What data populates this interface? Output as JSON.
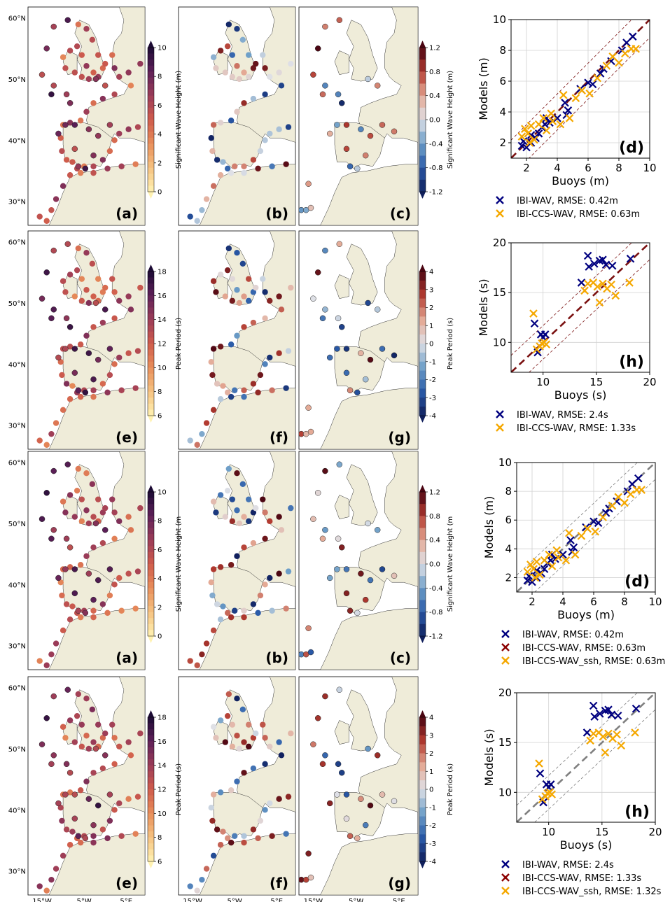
{
  "rows": [
    {
      "maps": {
        "panels": [
          "(a)",
          "(b)",
          "(c)"
        ],
        "lat_labels": [
          "60°N",
          "50°N",
          "40°N",
          "30°N"
        ],
        "lon_labels": [],
        "cb1": {
          "label": "Significant Wave Height (m)",
          "ticks": [
            "0",
            "2",
            "4",
            "6",
            "8",
            "10"
          ]
        },
        "cb2": {
          "label": "Significant Wave Height (m)",
          "ticks": [
            "-1.2",
            "-0.8",
            "-0.4",
            "0.0",
            "0.4",
            "0.8",
            "1.2"
          ]
        }
      }
    },
    {
      "maps": {
        "panels": [
          "(e)",
          "(f)",
          "(g)"
        ],
        "lat_labels": [
          "60°N",
          "50°N",
          "40°N",
          "30°N"
        ],
        "lon_labels": [],
        "cb1": {
          "label": "Peak Period (s)",
          "ticks": [
            "6",
            "8",
            "10",
            "12",
            "14",
            "16",
            "18"
          ]
        },
        "cb2": {
          "label": "Peak Period (s)",
          "ticks": [
            "-4",
            "-3",
            "-2",
            "-1",
            "0",
            "1",
            "2",
            "3",
            "4"
          ]
        }
      }
    },
    {
      "maps": {
        "panels": [
          "(a)",
          "(b)",
          "(c)"
        ],
        "lat_labels": [
          "60°N",
          "50°N",
          "40°N",
          "30°N"
        ],
        "lon_labels": [],
        "cb1": {
          "label": "Significant Wave Height (m",
          "ticks": [
            "0",
            "2",
            "4",
            "6",
            "8",
            "10"
          ]
        },
        "cb2": {
          "label": "Significant Wave Height (m",
          "ticks": [
            "-1.2",
            "-0.8",
            "-0.4",
            "0.0",
            "0.4",
            "0.8",
            "1.2"
          ]
        }
      }
    },
    {
      "maps": {
        "panels": [
          "(e)",
          "(f)",
          "(g)"
        ],
        "lat_labels": [
          "60°N",
          "50°N",
          "40°N",
          "30°N"
        ],
        "lon_labels": [
          "15°W",
          "5°W",
          "5°E"
        ],
        "cb1": {
          "label": "Peak Period (s)",
          "ticks": [
            "6",
            "8",
            "10",
            "12",
            "14",
            "16",
            "18"
          ]
        },
        "cb2": {
          "label": "Peak Period (s)",
          "ticks": [
            "-4",
            "-3",
            "-2",
            "-1",
            "0",
            "1",
            "2",
            "3",
            "4"
          ]
        }
      }
    }
  ],
  "chart_data": [
    {
      "type": "scatter",
      "panel": "(d)",
      "xlabel": "Buoys (m)",
      "ylabel": "Models (m)",
      "xlim": [
        1,
        10
      ],
      "ylim": [
        1,
        10
      ],
      "xticks": [
        "2",
        "4",
        "6",
        "8",
        "10"
      ],
      "yticks": [
        "2",
        "4",
        "6",
        "8",
        "10"
      ],
      "guide_color": "#7a1010",
      "guide_dash": "10,6",
      "series": [
        {
          "name": "IBI-WAV, RMSE: 0.42m",
          "color": "#00007f",
          "points": [
            [
              1.7,
              1.8
            ],
            [
              1.8,
              2.1
            ],
            [
              2.0,
              1.7
            ],
            [
              2.3,
              2.0
            ],
            [
              2.6,
              2.3
            ],
            [
              2.8,
              2.6
            ],
            [
              3.0,
              3.0
            ],
            [
              3.2,
              3.2
            ],
            [
              3.5,
              3.3
            ],
            [
              4.0,
              3.6
            ],
            [
              4.5,
              4.6
            ],
            [
              4.7,
              4.1
            ],
            [
              4.6,
              3.8
            ],
            [
              5.5,
              5.5
            ],
            [
              6.0,
              5.9
            ],
            [
              6.3,
              5.8
            ],
            [
              7.0,
              6.8
            ],
            [
              7.5,
              7.3
            ],
            [
              8.2,
              8.0
            ],
            [
              8.5,
              8.5
            ],
            [
              8.9,
              8.9
            ],
            [
              6.8,
              6.5
            ],
            [
              2.3,
              2.5
            ],
            [
              3.3,
              3.6
            ]
          ]
        },
        {
          "name": "IBI-CCS-WAV, RMSE: 0.63m",
          "color": "#f5a800",
          "points": [
            [
              1.7,
              2.4
            ],
            [
              1.9,
              2.9
            ],
            [
              2.1,
              2.6
            ],
            [
              2.3,
              3.1
            ],
            [
              2.5,
              2.2
            ],
            [
              2.8,
              3.2
            ],
            [
              3.1,
              3.6
            ],
            [
              3.3,
              2.8
            ],
            [
              3.7,
              3.4
            ],
            [
              4.2,
              3.2
            ],
            [
              4.4,
              5.1
            ],
            [
              4.8,
              3.6
            ],
            [
              5.2,
              4.9
            ],
            [
              5.6,
              5.4
            ],
            [
              6.1,
              5.2
            ],
            [
              6.6,
              6.2
            ],
            [
              7.2,
              7.0
            ],
            [
              7.6,
              7.6
            ],
            [
              8.0,
              7.2
            ],
            [
              8.4,
              7.8
            ],
            [
              8.8,
              8.1
            ],
            [
              9.1,
              8.1
            ],
            [
              2.2,
              2.0
            ],
            [
              3.6,
              3.9
            ]
          ]
        }
      ]
    },
    {
      "type": "scatter",
      "panel": "(h)",
      "xlabel": "Buoys (s)",
      "ylabel": "Models (s)",
      "xlim": [
        7,
        20
      ],
      "ylim": [
        7,
        20
      ],
      "xticks": [
        "10",
        "15",
        "20"
      ],
      "yticks": [
        "10",
        "15",
        "20"
      ],
      "guide_color": "#7a1010",
      "guide_dash": "10,6",
      "series": [
        {
          "name": "IBI-WAV, RMSE: 2.4s",
          "color": "#00007f",
          "points": [
            [
              9.2,
              11.9
            ],
            [
              9.5,
              9.0
            ],
            [
              9.8,
              10.8
            ],
            [
              10.0,
              10.5
            ],
            [
              10.2,
              10.8
            ],
            [
              13.6,
              16.0
            ],
            [
              14.2,
              18.7
            ],
            [
              14.3,
              17.6
            ],
            [
              14.8,
              17.9
            ],
            [
              15.3,
              18.2
            ],
            [
              15.6,
              18.3
            ],
            [
              15.9,
              17.8
            ],
            [
              16.5,
              17.7
            ],
            [
              18.2,
              18.4
            ]
          ]
        },
        {
          "name": "IBI-CCS-WAV, RMSE: 1.33s",
          "color": "#f5a800",
          "points": [
            [
              9.1,
              12.9
            ],
            [
              9.4,
              9.3
            ],
            [
              9.7,
              9.6
            ],
            [
              9.9,
              9.9
            ],
            [
              10.1,
              10.0
            ],
            [
              10.3,
              9.8
            ],
            [
              13.9,
              15.2
            ],
            [
              14.2,
              15.9
            ],
            [
              14.7,
              16.0
            ],
            [
              15.1,
              15.6
            ],
            [
              15.3,
              14.0
            ],
            [
              15.6,
              15.9
            ],
            [
              16.0,
              15.4
            ],
            [
              16.4,
              15.8
            ],
            [
              16.8,
              14.7
            ],
            [
              18.1,
              16.0
            ]
          ]
        }
      ]
    },
    {
      "type": "scatter",
      "panel": "(d)",
      "xlabel": "Buoys (m)",
      "ylabel": "Models (m)",
      "xlim": [
        1,
        10
      ],
      "ylim": [
        1,
        10
      ],
      "xticks": [
        "2",
        "4",
        "6",
        "8",
        "10"
      ],
      "yticks": [
        "2",
        "4",
        "6",
        "8",
        "10"
      ],
      "guide_color": "#808080",
      "guide_dash": "10,6",
      "series": [
        {
          "name": "IBI-WAV, RMSE: 0.42m",
          "color": "#00007f",
          "points": [
            [
              1.7,
              1.8
            ],
            [
              1.8,
              2.1
            ],
            [
              2.0,
              1.7
            ],
            [
              2.3,
              2.0
            ],
            [
              2.6,
              2.3
            ],
            [
              2.8,
              2.6
            ],
            [
              3.0,
              3.0
            ],
            [
              3.2,
              3.2
            ],
            [
              3.5,
              3.3
            ],
            [
              4.0,
              3.6
            ],
            [
              4.5,
              4.6
            ],
            [
              4.7,
              4.1
            ],
            [
              4.6,
              3.8
            ],
            [
              5.5,
              5.5
            ],
            [
              6.0,
              5.9
            ],
            [
              6.3,
              5.8
            ],
            [
              7.0,
              6.8
            ],
            [
              7.5,
              7.3
            ],
            [
              8.2,
              8.0
            ],
            [
              8.5,
              8.5
            ],
            [
              8.9,
              8.9
            ],
            [
              6.8,
              6.5
            ],
            [
              2.3,
              2.5
            ],
            [
              3.3,
              3.6
            ]
          ]
        },
        {
          "name": "IBI-CCS-WAV, RMSE: 0.63m",
          "color": "#8b0000",
          "points": []
        },
        {
          "name": "IBI-CCS-WAV_ssh, RMSE: 0.63m",
          "color": "#f5a800",
          "points": [
            [
              1.7,
              2.4
            ],
            [
              1.9,
              2.9
            ],
            [
              2.1,
              2.6
            ],
            [
              2.3,
              3.1
            ],
            [
              2.5,
              2.2
            ],
            [
              2.8,
              3.2
            ],
            [
              3.1,
              3.6
            ],
            [
              3.3,
              2.8
            ],
            [
              3.7,
              3.4
            ],
            [
              4.2,
              3.2
            ],
            [
              4.4,
              5.1
            ],
            [
              4.8,
              3.6
            ],
            [
              5.2,
              4.9
            ],
            [
              5.6,
              5.4
            ],
            [
              6.1,
              5.2
            ],
            [
              6.6,
              6.2
            ],
            [
              7.2,
              7.0
            ],
            [
              7.6,
              7.6
            ],
            [
              8.0,
              7.2
            ],
            [
              8.4,
              7.8
            ],
            [
              8.8,
              8.1
            ],
            [
              9.1,
              8.1
            ],
            [
              2.2,
              2.0
            ],
            [
              3.6,
              3.9
            ]
          ]
        }
      ]
    },
    {
      "type": "scatter",
      "panel": "(h)",
      "xlabel": "Buoys (s)",
      "ylabel": "Models (s)",
      "xlim": [
        7,
        20
      ],
      "ylim": [
        7,
        20
      ],
      "xticks": [
        "10",
        "15",
        "20"
      ],
      "yticks": [
        "10",
        "15",
        "20"
      ],
      "guide_color": "#808080",
      "guide_dash": "10,6",
      "series": [
        {
          "name": "IBI-WAV, RMSE: 2.4s",
          "color": "#00007f",
          "points": [
            [
              9.2,
              11.9
            ],
            [
              9.5,
              9.0
            ],
            [
              9.8,
              10.8
            ],
            [
              10.0,
              10.5
            ],
            [
              10.2,
              10.8
            ],
            [
              13.6,
              16.0
            ],
            [
              14.2,
              18.7
            ],
            [
              14.3,
              17.6
            ],
            [
              14.8,
              17.9
            ],
            [
              15.3,
              18.2
            ],
            [
              15.6,
              18.3
            ],
            [
              15.9,
              17.8
            ],
            [
              16.5,
              17.7
            ],
            [
              18.2,
              18.4
            ]
          ]
        },
        {
          "name": "IBI-CCS-WAV, RMSE: 1.33s",
          "color": "#8b0000",
          "points": []
        },
        {
          "name": "IBI-CCS-WAV_ssh, RMSE: 1.32s",
          "color": "#f5a800",
          "points": [
            [
              9.1,
              12.9
            ],
            [
              9.4,
              9.3
            ],
            [
              9.7,
              9.6
            ],
            [
              9.9,
              9.9
            ],
            [
              10.1,
              10.0
            ],
            [
              10.3,
              9.8
            ],
            [
              13.9,
              15.2
            ],
            [
              14.2,
              15.9
            ],
            [
              14.7,
              16.0
            ],
            [
              15.1,
              15.6
            ],
            [
              15.3,
              14.0
            ],
            [
              15.6,
              15.9
            ],
            [
              16.0,
              15.4
            ],
            [
              16.4,
              15.8
            ],
            [
              16.8,
              14.7
            ],
            [
              18.1,
              16.0
            ]
          ]
        }
      ]
    }
  ]
}
